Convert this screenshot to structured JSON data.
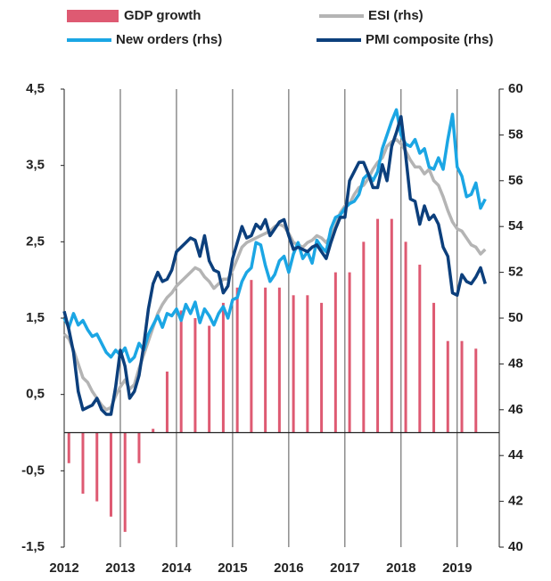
{
  "chart_data": {
    "type": "combo",
    "categories": [
      "2012",
      null,
      null,
      null,
      null,
      null,
      null,
      null,
      null,
      null,
      null,
      null,
      "2013",
      null,
      null,
      null,
      null,
      null,
      null,
      null,
      null,
      null,
      null,
      null,
      "2014",
      null,
      null,
      null,
      null,
      null,
      null,
      null,
      null,
      null,
      null,
      null,
      "2015",
      null,
      null,
      null,
      null,
      null,
      null,
      null,
      null,
      null,
      null,
      null,
      "2016",
      null,
      null,
      null,
      null,
      null,
      null,
      null,
      null,
      null,
      null,
      null,
      "2017",
      null,
      null,
      null,
      null,
      null,
      null,
      null,
      null,
      null,
      null,
      null,
      "2018",
      null,
      null,
      null,
      null,
      null,
      null,
      null,
      null,
      null,
      null,
      null,
      "2019",
      null,
      null,
      null,
      null,
      null,
      null
    ],
    "ylim": [
      -1.5,
      4.5
    ],
    "yticks": [
      {
        "value": -1.5,
        "label": "-1,5"
      },
      {
        "value": -0.5,
        "label": "-0,5"
      },
      {
        "value": 0.5,
        "label": "0,5"
      },
      {
        "value": 1.5,
        "label": "1,5"
      },
      {
        "value": 2.5,
        "label": "2,5"
      },
      {
        "value": 3.5,
        "label": "3,5"
      },
      {
        "value": 4.5,
        "label": "4,5"
      }
    ],
    "y2lim": [
      40,
      60
    ],
    "y2ticks": [
      40,
      42,
      44,
      46,
      48,
      50,
      52,
      54,
      56,
      58,
      60
    ],
    "grid": true,
    "series": [
      {
        "name": "GDP growth",
        "type": "bar",
        "color": "#de5a72",
        "values": [
          null,
          -0.4,
          null,
          null,
          -0.8,
          null,
          null,
          -0.9,
          null,
          null,
          -1.1,
          null,
          null,
          -1.3,
          null,
          null,
          -0.4,
          null,
          null,
          0.05,
          null,
          null,
          0.8,
          null,
          null,
          1.6,
          null,
          null,
          1.5,
          null,
          null,
          1.4,
          null,
          null,
          1.7,
          null,
          null,
          1.9,
          null,
          null,
          2.0,
          null,
          null,
          1.9,
          null,
          null,
          1.9,
          null,
          null,
          1.8,
          null,
          null,
          1.8,
          null,
          null,
          1.7,
          null,
          null,
          2.1,
          null,
          null,
          2.1,
          null,
          null,
          2.5,
          null,
          null,
          2.8,
          null,
          null,
          2.8,
          null,
          null,
          2.5,
          null,
          null,
          2.2,
          null,
          null,
          1.7,
          null,
          null,
          1.2,
          null,
          null,
          1.2,
          null,
          null,
          1.1,
          null,
          null
        ]
      },
      {
        "name": "ESI (rhs)",
        "type": "line",
        "axis": "y2",
        "color": "#b4b4b4",
        "values": [
          49.3,
          49.1,
          48.6,
          48.0,
          47.4,
          47.2,
          46.8,
          46.5,
          46.2,
          46.0,
          46.1,
          46.6,
          47.0,
          47.3,
          46.9,
          47.1,
          47.8,
          48.4,
          49.0,
          49.6,
          50.2,
          50.6,
          50.9,
          51.1,
          51.4,
          51.6,
          51.8,
          52.0,
          52.2,
          52.1,
          51.8,
          51.6,
          51.3,
          51.5,
          51.7,
          51.7,
          52.1,
          52.6,
          53.1,
          53.3,
          53.4,
          53.5,
          53.6,
          53.7,
          53.8,
          54.0,
          54.1,
          54.0,
          53.7,
          53.3,
          53.2,
          53.1,
          53.3,
          53.4,
          53.6,
          53.5,
          53.3,
          53.6,
          54.0,
          54.6,
          54.9,
          55.0,
          55.4,
          55.7,
          55.8,
          56.1,
          56.5,
          56.8,
          57.0,
          57.5,
          57.7,
          57.8,
          57.6,
          57.3,
          56.9,
          56.6,
          56.6,
          56.3,
          56.5,
          56.0,
          55.8,
          55.3,
          54.7,
          54.2,
          53.9,
          53.8,
          53.5,
          53.2,
          53.1,
          52.8,
          53.0
        ]
      },
      {
        "name": "New orders (rhs)",
        "type": "line",
        "axis": "y2",
        "color": "#1ba6e4",
        "values": [
          50.0,
          49.6,
          50.2,
          49.7,
          49.9,
          49.5,
          49.2,
          49.3,
          48.9,
          48.5,
          48.3,
          48.6,
          48.4,
          48.7,
          48.1,
          48.3,
          48.9,
          48.6,
          49.3,
          49.7,
          50.1,
          49.6,
          50.2,
          50.1,
          50.4,
          49.9,
          50.6,
          50.2,
          50.7,
          49.8,
          50.4,
          50.1,
          49.7,
          50.2,
          50.5,
          50.0,
          50.8,
          50.9,
          51.6,
          52.0,
          52.2,
          53.3,
          53.2,
          52.3,
          51.6,
          51.9,
          52.5,
          52.7,
          52.0,
          52.8,
          53.3,
          52.6,
          52.9,
          52.4,
          53.4,
          53.1,
          52.9,
          53.9,
          54.4,
          54.5,
          54.8,
          55.0,
          55.1,
          55.4,
          56.1,
          56.3,
          56.0,
          56.4,
          57.4,
          58.0,
          58.6,
          59.1,
          58.0,
          57.6,
          57.5,
          57.8,
          57.2,
          57.4,
          56.6,
          56.5,
          57.0,
          56.5,
          57.8,
          58.9,
          56.6,
          56.2,
          55.3,
          55.4,
          55.9,
          54.8,
          55.2
        ]
      },
      {
        "name": "PMI composite (rhs)",
        "type": "line",
        "axis": "y2",
        "color": "#0c3f7c",
        "values": [
          50.3,
          49.5,
          48.5,
          46.8,
          46.0,
          46.1,
          46.2,
          46.5,
          46.0,
          45.8,
          45.8,
          47.0,
          48.6,
          47.9,
          46.5,
          46.8,
          47.5,
          48.8,
          50.4,
          51.5,
          52.0,
          51.6,
          51.7,
          52.1,
          52.9,
          53.1,
          53.3,
          53.5,
          53.4,
          52.7,
          53.6,
          52.5,
          52.1,
          52.0,
          51.1,
          51.4,
          52.6,
          53.3,
          54.0,
          53.5,
          53.6,
          54.1,
          53.9,
          54.3,
          53.6,
          53.9,
          54.2,
          54.3,
          53.6,
          53.0,
          53.1,
          53.0,
          52.9,
          53.1,
          53.2,
          52.9,
          52.6,
          53.3,
          53.9,
          54.4,
          54.4,
          56.0,
          56.4,
          56.8,
          56.8,
          56.3,
          55.7,
          55.7,
          56.7,
          56.0,
          57.5,
          58.1,
          58.8,
          57.1,
          55.2,
          55.1,
          54.1,
          54.9,
          54.3,
          54.5,
          54.1,
          53.1,
          52.7,
          51.1,
          51.0,
          51.9,
          51.6,
          51.5,
          51.8,
          52.2,
          51.5
        ]
      }
    ]
  }
}
